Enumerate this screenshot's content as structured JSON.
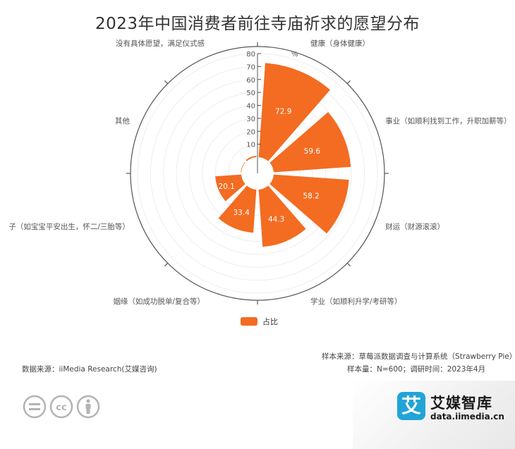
{
  "chart_data": {
    "type": "polar-bar",
    "title": "2023年中国消费者前往寺庙祈求的愿望分布",
    "unit": "%",
    "categories": [
      "健康（身体健康）",
      "事业（如顺利找到工作，升职加薪等）",
      "财运（财源滚滚）",
      "学业（如顺利升学/考研等）",
      "姻缘（如成功脱单/复合等）",
      "子（如宝宝平安出生，怀二/三胎等）",
      "其他",
      "没有具体愿望，满足仪式感"
    ],
    "series": [
      {
        "name": "占比",
        "values": [
          72.9,
          59.6,
          58.2,
          44.3,
          33.4,
          20.1,
          0.4,
          1.1
        ],
        "color": "#f36c21"
      }
    ],
    "radial_ticks": [
      "10",
      "20",
      "30",
      "40",
      "50",
      "60",
      "70",
      "80"
    ],
    "rlim": [
      0,
      80
    ],
    "legend": "bottom-center"
  },
  "footer": {
    "sample_source": "样本来源：草莓派数据调查与计算系统（Strawberry Pie）",
    "sample_size": "样本量：N=600；调研时间：2023年4月",
    "data_source": "数据来源：iiMedia Research(艾媒咨询)"
  },
  "brand": {
    "logo_char": "艾",
    "name": "艾媒智库",
    "url": "data.iimedia.cn"
  },
  "icons": [
    "equal-icon",
    "cc-icon",
    "person-icon"
  ]
}
